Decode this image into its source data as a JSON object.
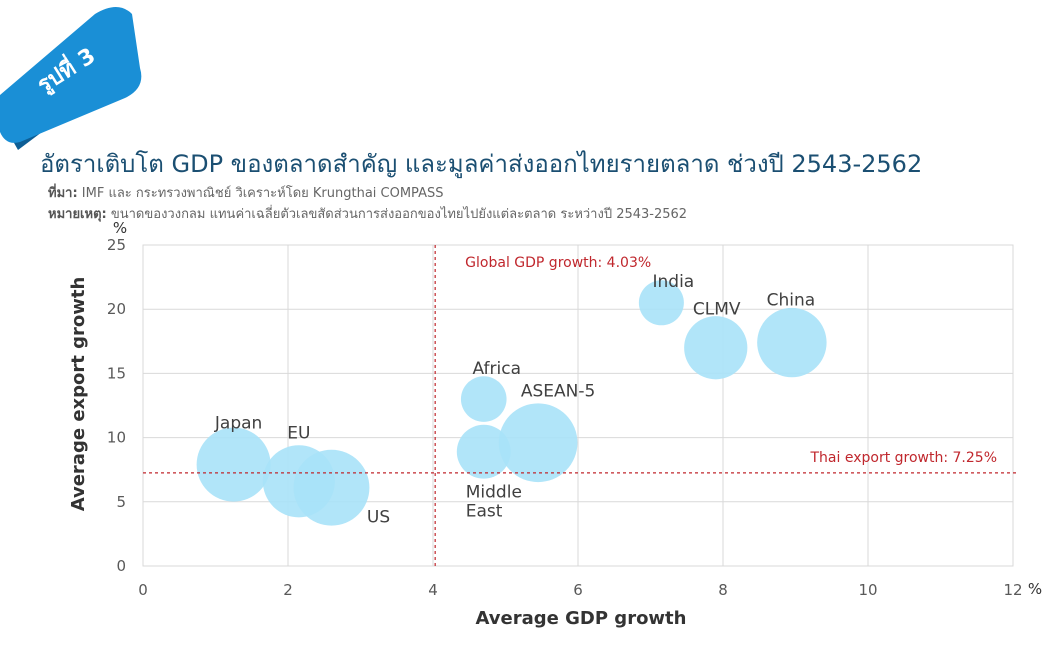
{
  "header": {
    "badge": "รูปที่ 3",
    "title": "อัตราเติบโต GDP ของตลาดสำคัญ และมูลค่าส่งออกไทยรายตลาด ช่วงปี 2543-2562",
    "source_label": "ที่มา:",
    "source_text": "IMF และ กระทรวงพาณิชย์ วิเคราะห์โดย Krungthai COMPASS",
    "note_label": "หมายเหตุ:",
    "note_text": "ขนาดของวงกลม แทนค่าเฉลี่ยตัวเลขสัดส่วนการส่งออกของไทยไปยังแต่ละตลาด ระหว่างปี 2543-2562"
  },
  "colors": {
    "ribbon": "#1a8fd6",
    "title": "#1b4f72",
    "bubble": "#a8e2f8",
    "reference_line": "#c0272d",
    "grid": "#d9d9d9",
    "axis_text": "#595959"
  },
  "chart_data": {
    "type": "scatter",
    "xlabel": "Average GDP growth",
    "ylabel": "Average export growth",
    "x_unit": "%",
    "y_unit": "%",
    "xlim": [
      0,
      12
    ],
    "ylim": [
      0,
      25
    ],
    "x_ticks": [
      0,
      2,
      4,
      6,
      8,
      10,
      12
    ],
    "y_ticks": [
      0,
      5,
      10,
      15,
      20,
      25
    ],
    "grid": true,
    "points": [
      {
        "name": "Japan",
        "label": "Japan",
        "x": 1.25,
        "y": 7.9,
        "size": 1.0
      },
      {
        "name": "EU",
        "label": "EU",
        "x": 2.15,
        "y": 6.6,
        "size": 0.95
      },
      {
        "name": "US",
        "label": "US",
        "x": 2.6,
        "y": 6.1,
        "size": 1.05
      },
      {
        "name": "Africa",
        "label": "Africa",
        "x": 4.7,
        "y": 13.0,
        "size": 0.38
      },
      {
        "name": "Middle East",
        "label_lines": [
          "Middle",
          "East"
        ],
        "x": 4.7,
        "y": 8.9,
        "size": 0.53
      },
      {
        "name": "ASEAN-5",
        "label": "ASEAN-5",
        "x": 5.45,
        "y": 9.6,
        "size": 1.13
      },
      {
        "name": "India",
        "label": "India",
        "x": 7.15,
        "y": 20.5,
        "size": 0.37
      },
      {
        "name": "CLMV",
        "label": "CLMV",
        "x": 7.9,
        "y": 17.0,
        "size": 0.73
      },
      {
        "name": "China",
        "label": "China",
        "x": 8.95,
        "y": 17.4,
        "size": 0.88
      }
    ],
    "reference_lines": [
      {
        "axis": "x",
        "value": 4.03,
        "label": "Global GDP growth: 4.03%"
      },
      {
        "axis": "y",
        "value": 7.25,
        "label": "Thai export growth: 7.25%"
      }
    ]
  }
}
